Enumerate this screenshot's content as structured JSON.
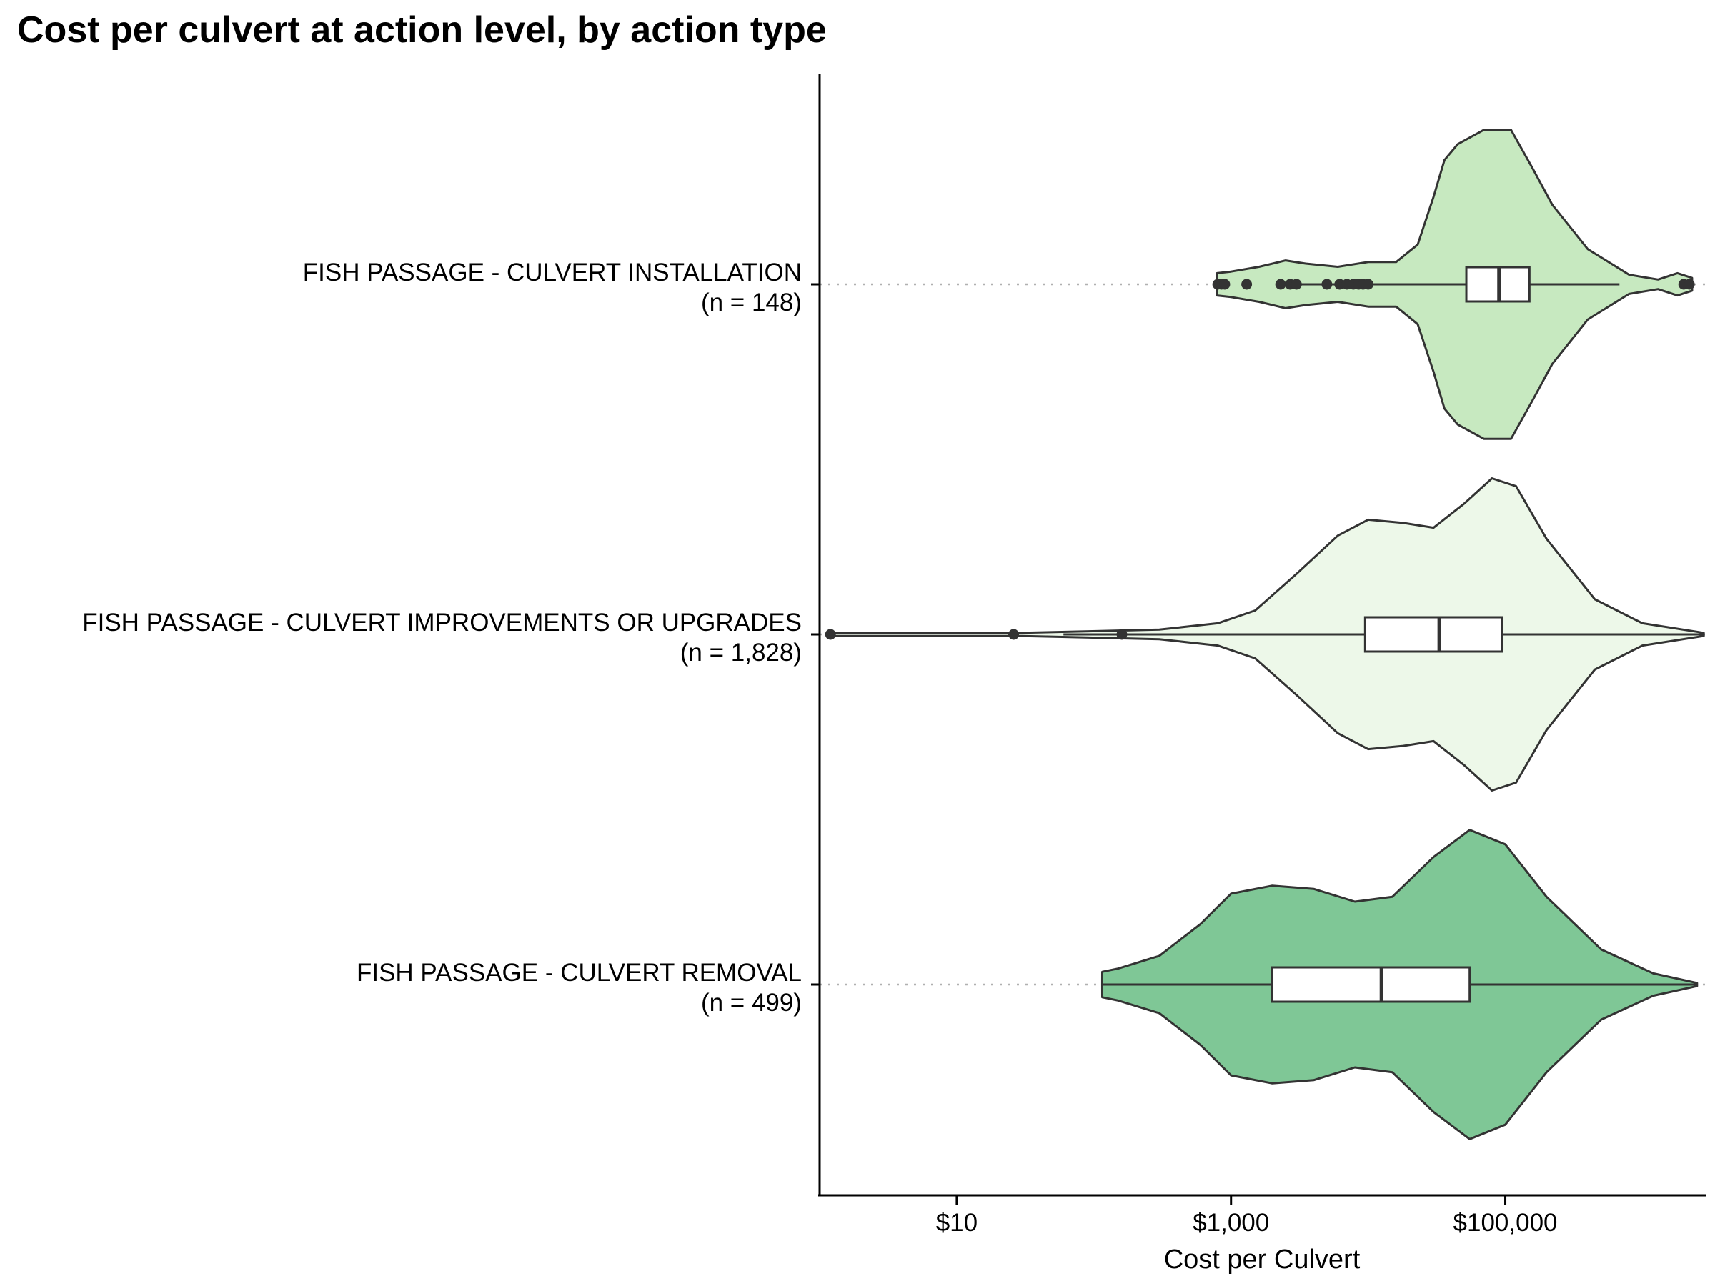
{
  "chart_data": {
    "type": "violin",
    "title": "Cost per culvert at action level, by action type",
    "xlabel": "Cost per Culvert",
    "ylabel": "",
    "x_scale": "log10",
    "xlim": [
      1,
      3000000
    ],
    "x_ticks": [
      {
        "value": 10,
        "label": "$10"
      },
      {
        "value": 1000,
        "label": "$1,000"
      },
      {
        "value": 100000,
        "label": "$100,000"
      }
    ],
    "grid": "dotted horizontal reference line per category",
    "legend": "none",
    "categories": [
      {
        "name": "FISH PASSAGE - CULVERT INSTALLATION",
        "n_label": "(n = 148)",
        "fill": "#c7e9c0",
        "box": {
          "whisker_low": 3100,
          "q1": 52000,
          "median": 90000,
          "q3": 150000,
          "whisker_high": 680000
        },
        "outliers": [
          800,
          850,
          900,
          1300,
          2300,
          2700,
          3000,
          5000,
          6200,
          7000,
          7800,
          8500,
          9200,
          10000,
          2000000,
          2200000
        ],
        "density": [
          {
            "x": 790,
            "w": 0.07
          },
          {
            "x": 1000,
            "w": 0.08
          },
          {
            "x": 1600,
            "w": 0.11
          },
          {
            "x": 2500,
            "w": 0.15
          },
          {
            "x": 3500,
            "w": 0.13
          },
          {
            "x": 6000,
            "w": 0.11
          },
          {
            "x": 10000,
            "w": 0.14
          },
          {
            "x": 16000,
            "w": 0.14
          },
          {
            "x": 23000,
            "w": 0.25
          },
          {
            "x": 30000,
            "w": 0.55
          },
          {
            "x": 36000,
            "w": 0.78
          },
          {
            "x": 45000,
            "w": 0.88
          },
          {
            "x": 70000,
            "w": 0.97
          },
          {
            "x": 110000,
            "w": 0.97
          },
          {
            "x": 160000,
            "w": 0.72
          },
          {
            "x": 220000,
            "w": 0.5
          },
          {
            "x": 400000,
            "w": 0.22
          },
          {
            "x": 800000,
            "w": 0.06
          },
          {
            "x": 1300000,
            "w": 0.03
          },
          {
            "x": 1800000,
            "w": 0.07
          },
          {
            "x": 2300000,
            "w": 0.04
          }
        ]
      },
      {
        "name": "FISH PASSAGE - CULVERT IMPROVEMENTS OR UPGRADES",
        "n_label": "(n = 1,828)",
        "fill": "#edf8e9",
        "box": {
          "whisker_low": 60,
          "q1": 9500,
          "median": 33000,
          "q3": 95000,
          "whisker_high": 2800000
        },
        "outliers": [
          1.2,
          26,
          160
        ],
        "density": [
          {
            "x": 1.2,
            "w": 0.01
          },
          {
            "x": 30,
            "w": 0.01
          },
          {
            "x": 300,
            "w": 0.03
          },
          {
            "x": 800,
            "w": 0.07
          },
          {
            "x": 1500,
            "w": 0.15
          },
          {
            "x": 3000,
            "w": 0.38
          },
          {
            "x": 6000,
            "w": 0.62
          },
          {
            "x": 10000,
            "w": 0.72
          },
          {
            "x": 18000,
            "w": 0.7
          },
          {
            "x": 30000,
            "w": 0.67
          },
          {
            "x": 50000,
            "w": 0.82
          },
          {
            "x": 80000,
            "w": 0.98
          },
          {
            "x": 120000,
            "w": 0.93
          },
          {
            "x": 200000,
            "w": 0.6
          },
          {
            "x": 450000,
            "w": 0.22
          },
          {
            "x": 1000000,
            "w": 0.07
          },
          {
            "x": 2800000,
            "w": 0.01
          }
        ]
      },
      {
        "name": "FISH PASSAGE - CULVERT REMOVAL",
        "n_label": "(n = 499)",
        "fill": "#7fc796",
        "box": {
          "whisker_low": 115,
          "q1": 2000,
          "median": 12500,
          "q3": 55000,
          "whisker_high": 2500000
        },
        "outliers": [],
        "density": [
          {
            "x": 115,
            "w": 0.08
          },
          {
            "x": 150,
            "w": 0.1
          },
          {
            "x": 300,
            "w": 0.18
          },
          {
            "x": 600,
            "w": 0.38
          },
          {
            "x": 1000,
            "w": 0.57
          },
          {
            "x": 2000,
            "w": 0.62
          },
          {
            "x": 4000,
            "w": 0.6
          },
          {
            "x": 8000,
            "w": 0.52
          },
          {
            "x": 15000,
            "w": 0.55
          },
          {
            "x": 30000,
            "w": 0.8
          },
          {
            "x": 55000,
            "w": 0.97
          },
          {
            "x": 100000,
            "w": 0.88
          },
          {
            "x": 200000,
            "w": 0.55
          },
          {
            "x": 500000,
            "w": 0.22
          },
          {
            "x": 1200000,
            "w": 0.07
          },
          {
            "x": 2500000,
            "w": 0.01
          }
        ]
      }
    ]
  }
}
